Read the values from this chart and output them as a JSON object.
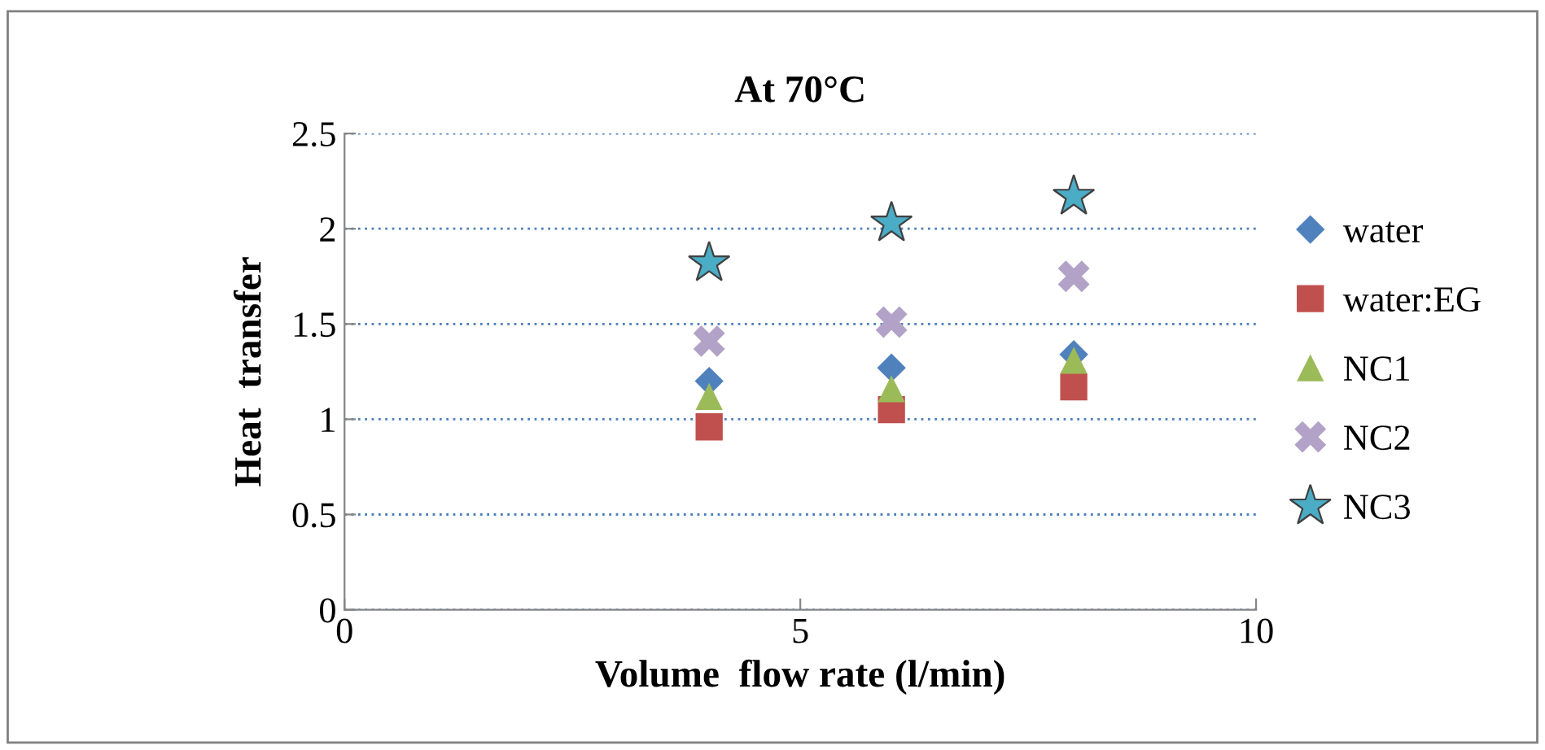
{
  "chart_data": {
    "type": "scatter",
    "title": "At 70°C",
    "xlabel": "Volume  flow rate (l/min)",
    "ylabel": "Heat  transfer",
    "xlim": [
      0,
      10
    ],
    "xticks": [
      0,
      5,
      10
    ],
    "ylim": [
      0,
      2.5
    ],
    "yticks": [
      0,
      0.5,
      1,
      1.5,
      2,
      2.5
    ],
    "grid": "y",
    "legend": "right",
    "series": [
      {
        "name": "water",
        "color": "#4f81bd",
        "marker": "diamond",
        "x": [
          4,
          6,
          8
        ],
        "values": [
          1.2,
          1.27,
          1.34
        ]
      },
      {
        "name": "water:EG",
        "color": "#c0504d",
        "marker": "square",
        "x": [
          4,
          6,
          8
        ],
        "values": [
          0.96,
          1.05,
          1.17
        ]
      },
      {
        "name": "NC1",
        "color": "#9bbb59",
        "marker": "triangle",
        "x": [
          4,
          6,
          8
        ],
        "values": [
          1.12,
          1.16,
          1.31
        ]
      },
      {
        "name": "NC2",
        "color": "#b3a2c7",
        "marker": "cross",
        "x": [
          4,
          6,
          8
        ],
        "values": [
          1.41,
          1.51,
          1.75
        ]
      },
      {
        "name": "NC3",
        "color": "#4bacc6",
        "marker": "star",
        "x": [
          4,
          6,
          8
        ],
        "values": [
          1.82,
          2.03,
          2.17
        ]
      }
    ]
  }
}
